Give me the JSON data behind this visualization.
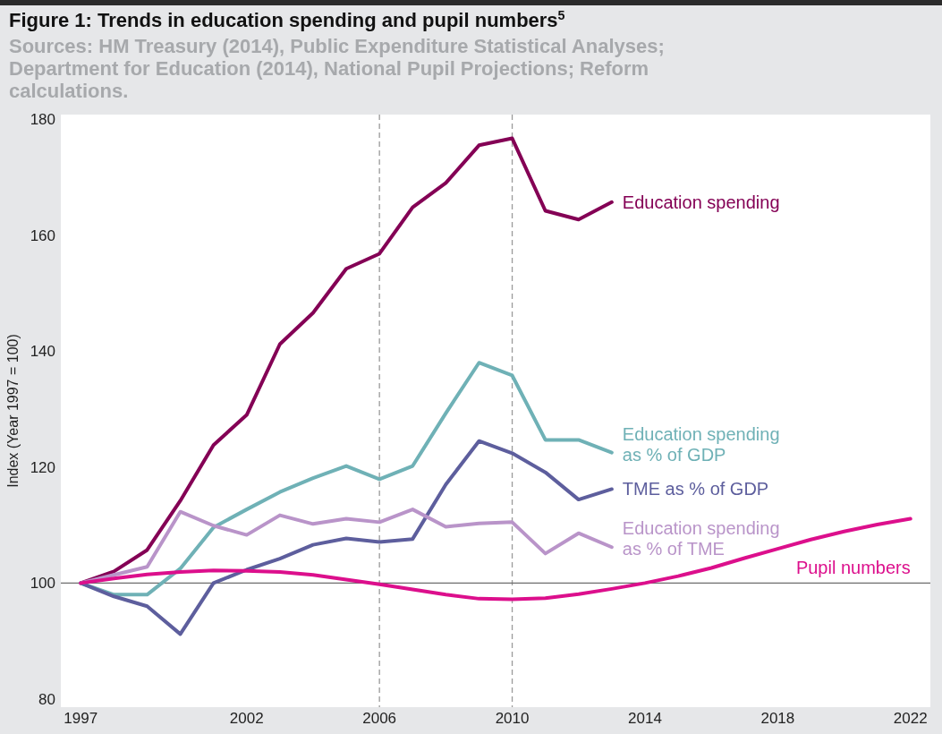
{
  "chart_data": {
    "type": "line",
    "title": "Figure 1: Trends in education spending and pupil numbers$^{5}$",
    "subtitle": "Sources: HM Treasury (2014), Public Expenditure Statistical Analyses; Department for Education (2014), National Pupil Projections; Reform calculations.",
    "ylabel": "Index (Year 1997 = 100)",
    "xlim": [
      1996.4,
      2022.6
    ],
    "xticks": [
      1997,
      2002,
      2006,
      2010,
      2014,
      2018,
      2022
    ],
    "ylim": [
      78.6,
      180.8
    ],
    "yticks": [
      80,
      100,
      120,
      140,
      160,
      180
    ],
    "grid": false,
    "marker": "none",
    "line_style": "solid",
    "x": [
      1997,
      1998,
      1999,
      2000,
      2001,
      2002,
      2003,
      2004,
      2005,
      2006,
      2007,
      2008,
      2009,
      2010,
      2011,
      2012,
      2013
    ],
    "series": [
      {
        "name": "Education spending",
        "color": "#840055",
        "values": [
          100,
          102.0,
          105.7,
          114.2,
          123.8,
          129.0,
          141.2,
          146.6,
          154.2,
          156.8,
          164.8,
          169.0,
          175.5,
          176.7,
          164.2,
          162.7,
          165.7
        ]
      },
      {
        "name": "Education spending as % of GDP",
        "color": "#6fb1b6",
        "values": [
          100,
          98.0,
          98.0,
          102.5,
          109.6,
          112.7,
          115.7,
          118.1,
          120.2,
          117.9,
          120.2,
          129.3,
          138.0,
          135.8,
          124.7,
          124.7,
          122.5
        ]
      },
      {
        "name": "TME as % of GDP",
        "color": "#5d5e9d",
        "values": [
          100,
          97.7,
          96.0,
          91.2,
          100,
          102.3,
          104.2,
          106.6,
          107.7,
          107.1,
          107.6,
          117.0,
          124.5,
          122.4,
          119.1,
          114.4,
          116.2
        ]
      },
      {
        "name": "Education spending as % of TME",
        "color": "#b994c9",
        "values": [
          100,
          101.4,
          102.8,
          112.3,
          109.9,
          108.3,
          111.7,
          110.2,
          111.1,
          110.5,
          112.7,
          109.7,
          110.3,
          110.5,
          105.1,
          108.6,
          106.2
        ]
      },
      {
        "name": "Pupil numbers",
        "color": "#dc0f8c",
        "x": [
          1997,
          1998,
          1999,
          2000,
          2001,
          2002,
          2003,
          2004,
          2005,
          2006,
          2007,
          2008,
          2009,
          2010,
          2011,
          2012,
          2013,
          2014,
          2015,
          2016,
          2017,
          2018,
          2019,
          2020,
          2021,
          2022
        ],
        "values": [
          100,
          100.8,
          101.5,
          101.9,
          102.2,
          102.1,
          101.9,
          101.4,
          100.6,
          99.8,
          98.9,
          98.0,
          97.3,
          97.2,
          97.4,
          98.1,
          99.0,
          100.0,
          101.2,
          102.6,
          104.3,
          105.9,
          107.5,
          108.9,
          110.1,
          111.1
        ]
      }
    ],
    "ref_lines": [
      {
        "axis": "x",
        "value": 2006,
        "color": "#9a9a9a",
        "line_style": "dashed"
      },
      {
        "axis": "x",
        "value": 2010,
        "color": "#9a9a9a",
        "line_style": "dashed"
      },
      {
        "axis": "y",
        "value": 100,
        "color": "#6d6d6d",
        "line_style": "solid"
      }
    ]
  }
}
